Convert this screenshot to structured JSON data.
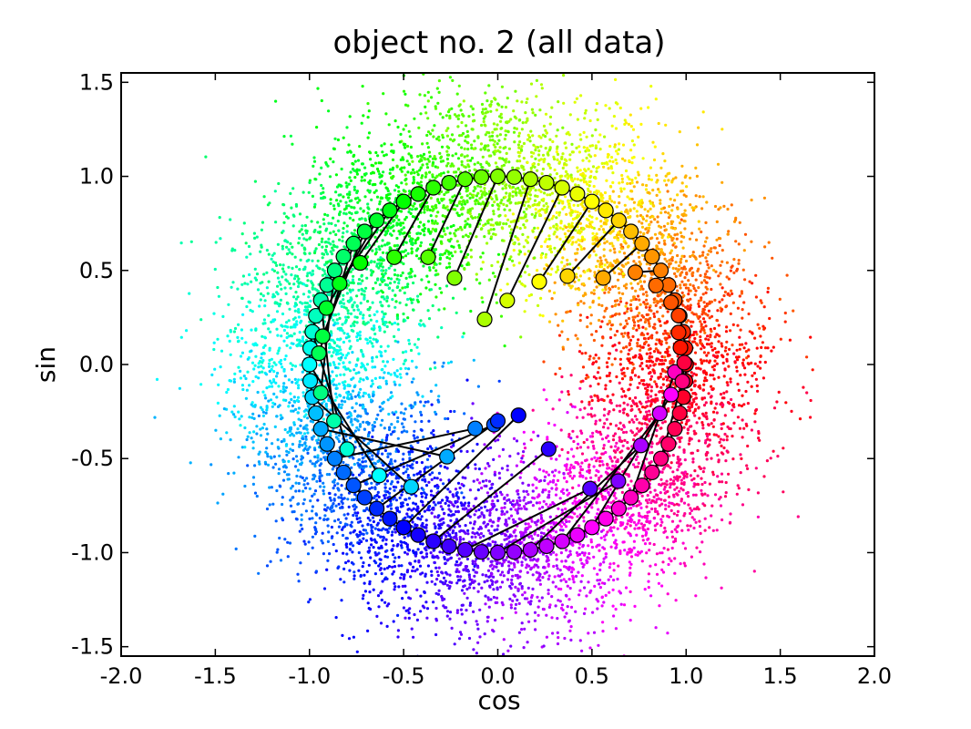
{
  "chart_data": {
    "type": "scatter",
    "title": "object no. 2 (all data)",
    "xlabel": "cos",
    "ylabel": "sin",
    "xlim": [
      -2.0,
      2.0
    ],
    "ylim": [
      -1.55,
      1.55
    ],
    "xticks": [
      -2.0,
      -1.5,
      -1.0,
      -0.5,
      0.0,
      0.5,
      1.0,
      1.5,
      2.0
    ],
    "xtick_labels": [
      "-2.0",
      "-1.5",
      "-1.0",
      "-0.5",
      "0.0",
      "0.5",
      "1.0",
      "1.5",
      "2.0"
    ],
    "yticks": [
      -1.5,
      -1.0,
      -0.5,
      0.0,
      0.5,
      1.0,
      1.5
    ],
    "ytick_labels": [
      "-1.5",
      "-1.0",
      "-0.5",
      "0.0",
      "0.5",
      "1.0",
      "1.5"
    ],
    "grid": false,
    "legend": "none",
    "colormap": "hsv (rainbow by phase angle)",
    "background_cloud": {
      "description_shape": "noisy ring of points around unit circle, colored by angle",
      "approx_count": 9000,
      "radius_mean": 1.0,
      "radius_sd": 0.22
    },
    "ring_markers": {
      "count": 72,
      "radius": 1.0,
      "connected_by_line": true,
      "color": "#000000"
    },
    "inner_markers": [
      {
        "angle_deg": 5,
        "x": 0.97,
        "y": 0.09
      },
      {
        "angle_deg": 10,
        "x": 0.96,
        "y": 0.17
      },
      {
        "angle_deg": 15,
        "x": 0.96,
        "y": 0.26
      },
      {
        "angle_deg": 20,
        "x": 0.92,
        "y": 0.33
      },
      {
        "angle_deg": 25,
        "x": 0.84,
        "y": 0.42
      },
      {
        "angle_deg": 30,
        "x": 0.73,
        "y": 0.49
      },
      {
        "angle_deg": 40,
        "x": 0.56,
        "y": 0.46
      },
      {
        "angle_deg": 50,
        "x": 0.37,
        "y": 0.47
      },
      {
        "angle_deg": 60,
        "x": 0.22,
        "y": 0.44
      },
      {
        "angle_deg": 70,
        "x": 0.05,
        "y": 0.34
      },
      {
        "angle_deg": 80,
        "x": -0.07,
        "y": 0.24
      },
      {
        "angle_deg": 90,
        "x": -0.23,
        "y": 0.46
      },
      {
        "angle_deg": 100,
        "x": -0.37,
        "y": 0.57
      },
      {
        "angle_deg": 110,
        "x": -0.55,
        "y": 0.57
      },
      {
        "angle_deg": 120,
        "x": -0.73,
        "y": 0.54
      },
      {
        "angle_deg": 125,
        "x": -0.84,
        "y": 0.43
      },
      {
        "angle_deg": 130,
        "x": -0.91,
        "y": 0.3
      },
      {
        "angle_deg": 135,
        "x": -0.93,
        "y": 0.15
      },
      {
        "angle_deg": 140,
        "x": -0.95,
        "y": 0.06
      },
      {
        "angle_deg": 150,
        "x": -0.94,
        "y": -0.15
      },
      {
        "angle_deg": 160,
        "x": -0.87,
        "y": -0.3
      },
      {
        "angle_deg": 170,
        "x": -0.8,
        "y": -0.45
      },
      {
        "angle_deg": 180,
        "x": -0.63,
        "y": -0.59
      },
      {
        "angle_deg": 190,
        "x": -0.46,
        "y": -0.65
      },
      {
        "angle_deg": 200,
        "x": -0.27,
        "y": -0.49
      },
      {
        "angle_deg": 210,
        "x": -0.12,
        "y": -0.34
      },
      {
        "angle_deg": 220,
        "x": -0.02,
        "y": -0.32
      },
      {
        "angle_deg": 230,
        "x": 0.0,
        "y": -0.3
      },
      {
        "angle_deg": 240,
        "x": 0.11,
        "y": -0.27
      },
      {
        "angle_deg": 250,
        "x": 0.27,
        "y": -0.45
      },
      {
        "angle_deg": 260,
        "x": 0.49,
        "y": -0.66
      },
      {
        "angle_deg": 270,
        "x": 0.64,
        "y": -0.62
      },
      {
        "angle_deg": 280,
        "x": 0.76,
        "y": -0.43
      },
      {
        "angle_deg": 290,
        "x": 0.86,
        "y": -0.26
      },
      {
        "angle_deg": 300,
        "x": 0.92,
        "y": -0.16
      },
      {
        "angle_deg": 315,
        "x": 0.94,
        "y": -0.04
      },
      {
        "angle_deg": 330,
        "x": 0.98,
        "y": -0.09
      },
      {
        "angle_deg": 345,
        "x": 0.99,
        "y": 0.01
      }
    ],
    "colors": {
      "frame": "#000000",
      "ring_line": "#000000",
      "background": "#ffffff"
    }
  }
}
